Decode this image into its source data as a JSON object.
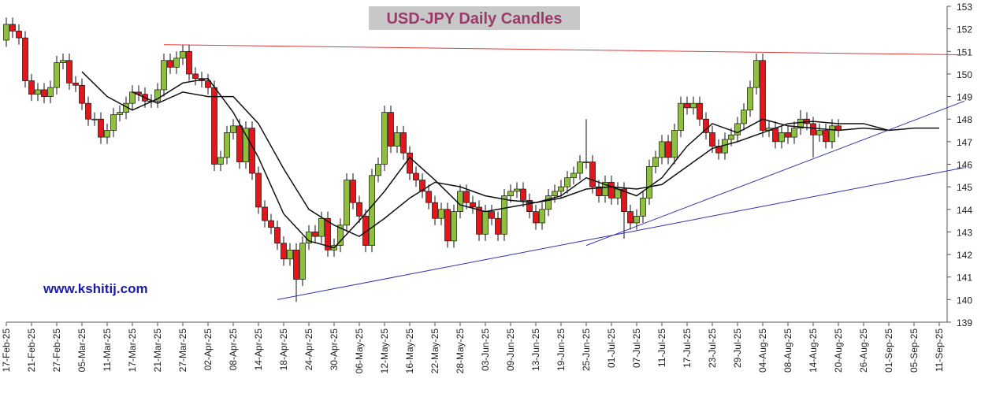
{
  "chart_data": {
    "type": "candlestick",
    "title": "USD-JPY Daily Candles",
    "watermark": "www.kshitij.com",
    "up_color": "#8fc03a",
    "down_color": "#e3161c",
    "ylim": [
      139,
      153
    ],
    "yticks": [
      139,
      140,
      141,
      142,
      143,
      144,
      145,
      146,
      147,
      148,
      149,
      150,
      151,
      152,
      153
    ],
    "xticks": [
      "17-Feb-25",
      "21-Feb-25",
      "27-Feb-25",
      "05-Mar-25",
      "11-Mar-25",
      "17-Mar-25",
      "21-Mar-25",
      "27-Mar-25",
      "02-Apr-25",
      "08-Apr-25",
      "14-Apr-25",
      "18-Apr-25",
      "24-Apr-25",
      "30-Apr-25",
      "06-May-25",
      "12-May-25",
      "16-May-25",
      "22-May-25",
      "28-May-25",
      "03-Jun-25",
      "09-Jun-25",
      "13-Jun-25",
      "19-Jun-25",
      "25-Jun-25",
      "01-Jul-25",
      "07-Jul-25",
      "11-Jul-25",
      "17-Jul-25",
      "23-Jul-25",
      "29-Jul-25",
      "04-Aug-25",
      "08-Aug-25",
      "14-Aug-25",
      "20-Aug-25",
      "26-Aug-25",
      "01-Sep-25",
      "05-Sep-25",
      "11-Sep-25"
    ],
    "open": [
      151.5,
      152.2,
      151.9,
      151.6,
      149.7,
      149.1,
      149.3,
      149.0,
      149.4,
      150.5,
      150.6,
      149.6,
      149.5,
      148.7,
      148.0,
      148.0,
      147.2,
      147.5,
      148.2,
      148.3,
      148.7,
      149.2,
      149.1,
      148.8,
      148.8,
      149.3,
      150.6,
      150.3,
      150.7,
      151.0,
      150.0,
      149.8,
      149.7,
      149.4,
      146.0,
      146.3,
      147.4,
      147.7,
      146.1,
      147.6,
      145.6,
      144.1,
      143.5,
      143.2,
      142.5,
      141.8,
      142.2,
      140.9,
      142.5,
      143.0,
      142.8,
      143.6,
      142.2,
      142.4,
      143.3,
      145.3,
      144.3,
      143.7,
      142.4,
      145.5,
      146.0,
      148.3,
      146.8,
      147.4,
      146.5,
      145.6,
      145.3,
      144.8,
      144.3,
      143.6,
      144.0,
      142.6,
      143.9,
      144.8,
      144.3,
      144.1,
      142.9,
      143.9,
      143.6,
      142.9,
      144.6,
      144.8,
      144.9,
      144.4,
      143.9,
      143.4,
      144.0,
      144.6,
      144.8,
      145.0,
      145.4,
      145.6,
      146.1,
      146.1,
      145.0,
      144.6,
      145.2,
      144.5,
      144.9,
      143.9,
      143.4,
      143.7,
      144.5,
      145.9,
      146.3,
      147.0,
      146.3,
      147.5,
      148.7,
      148.5,
      148.7,
      148.0,
      147.4,
      146.8,
      146.5,
      147.1,
      147.3,
      147.8,
      148.4,
      149.4,
      150.6,
      147.5,
      147.6,
      147.0,
      147.4,
      147.2,
      147.6,
      148.0,
      147.8,
      147.3,
      147.5,
      147.0,
      147.7
    ],
    "high": [
      152.5,
      152.5,
      152.2,
      151.9,
      150.0,
      149.6,
      149.6,
      149.7,
      150.8,
      150.9,
      150.9,
      149.9,
      149.8,
      149.0,
      148.3,
      148.3,
      147.8,
      148.5,
      148.6,
      149.0,
      149.5,
      149.5,
      149.4,
      149.1,
      149.6,
      150.9,
      150.9,
      151.0,
      151.3,
      151.3,
      150.3,
      150.1,
      150.0,
      149.7,
      146.6,
      147.7,
      148.0,
      148.0,
      147.9,
      147.9,
      145.9,
      144.4,
      143.8,
      143.5,
      142.8,
      142.5,
      142.5,
      142.8,
      143.3,
      143.3,
      143.9,
      143.9,
      142.7,
      143.6,
      145.6,
      145.6,
      144.6,
      144.0,
      145.8,
      146.3,
      148.6,
      148.6,
      147.7,
      147.7,
      146.8,
      145.9,
      145.6,
      145.1,
      144.6,
      144.3,
      144.3,
      144.2,
      145.1,
      145.1,
      144.6,
      144.4,
      144.2,
      144.2,
      143.9,
      144.9,
      145.1,
      145.2,
      145.2,
      144.7,
      144.2,
      144.3,
      144.9,
      145.1,
      145.3,
      145.7,
      145.9,
      146.4,
      148.0,
      146.4,
      145.3,
      145.5,
      145.5,
      145.2,
      145.2,
      144.2,
      144.0,
      144.8,
      146.2,
      146.6,
      147.3,
      147.3,
      147.8,
      149.0,
      149.0,
      149.0,
      149.0,
      148.3,
      147.7,
      147.1,
      147.4,
      147.6,
      148.1,
      148.7,
      149.7,
      150.9,
      150.9,
      147.9,
      147.9,
      147.7,
      147.7,
      147.9,
      148.4,
      148.3,
      148.1,
      147.8,
      147.8,
      148.0,
      148.0
    ],
    "low": [
      151.2,
      151.6,
      151.3,
      149.4,
      148.8,
      148.8,
      148.7,
      148.7,
      149.1,
      150.2,
      149.3,
      149.2,
      148.4,
      147.7,
      147.7,
      146.9,
      146.9,
      147.2,
      147.9,
      148.0,
      148.4,
      148.8,
      148.5,
      148.5,
      148.5,
      149.0,
      150.0,
      150.0,
      150.4,
      149.7,
      149.5,
      149.4,
      149.1,
      145.7,
      145.7,
      146.0,
      147.1,
      145.8,
      145.8,
      145.3,
      143.8,
      143.2,
      142.9,
      142.2,
      141.5,
      141.5,
      139.9,
      140.6,
      142.2,
      142.5,
      142.5,
      141.9,
      141.9,
      142.1,
      143.0,
      144.0,
      143.4,
      142.1,
      142.1,
      145.2,
      145.7,
      146.5,
      146.5,
      146.2,
      145.3,
      145.0,
      144.5,
      144.0,
      143.3,
      143.3,
      142.3,
      142.3,
      143.6,
      144.0,
      143.8,
      142.6,
      142.6,
      143.3,
      142.6,
      142.6,
      144.3,
      144.5,
      144.1,
      143.6,
      143.1,
      143.1,
      143.7,
      144.3,
      144.5,
      144.7,
      145.1,
      145.3,
      145.8,
      144.7,
      144.3,
      144.3,
      144.2,
      144.2,
      142.7,
      143.1,
      143.1,
      143.4,
      144.2,
      145.6,
      146.0,
      146.0,
      146.0,
      147.2,
      148.2,
      148.2,
      147.7,
      147.1,
      146.5,
      146.2,
      146.2,
      146.8,
      147.0,
      147.5,
      148.1,
      149.1,
      147.2,
      147.2,
      146.7,
      146.7,
      146.9,
      146.9,
      147.3,
      147.5,
      146.3,
      147.0,
      146.7,
      146.7,
      147.2
    ],
    "close": [
      152.2,
      151.9,
      151.6,
      149.7,
      149.1,
      149.3,
      149.0,
      149.4,
      150.5,
      150.6,
      149.6,
      149.5,
      148.7,
      148.0,
      148.0,
      147.2,
      147.5,
      148.2,
      148.3,
      148.7,
      149.2,
      149.1,
      148.8,
      148.8,
      149.3,
      150.6,
      150.3,
      150.7,
      151.0,
      150.0,
      149.8,
      149.7,
      149.4,
      146.0,
      146.3,
      147.4,
      147.7,
      146.1,
      147.6,
      145.6,
      144.1,
      143.5,
      143.2,
      142.5,
      141.8,
      142.2,
      140.9,
      142.5,
      143.0,
      142.8,
      143.6,
      142.2,
      142.4,
      143.3,
      145.3,
      144.3,
      143.7,
      142.4,
      145.5,
      146.0,
      148.3,
      146.8,
      147.4,
      146.5,
      145.6,
      145.3,
      144.8,
      144.3,
      143.6,
      144.0,
      142.6,
      143.9,
      144.8,
      144.3,
      144.1,
      142.9,
      143.9,
      143.6,
      142.9,
      144.6,
      144.8,
      144.9,
      144.4,
      143.9,
      143.4,
      144.0,
      144.6,
      144.8,
      145.0,
      145.4,
      145.6,
      146.1,
      146.1,
      145.0,
      144.6,
      145.2,
      144.5,
      144.9,
      143.9,
      143.4,
      143.7,
      144.5,
      145.9,
      146.3,
      147.0,
      146.3,
      147.5,
      148.7,
      148.5,
      148.7,
      148.0,
      147.4,
      146.8,
      146.5,
      147.1,
      147.3,
      147.8,
      148.4,
      149.4,
      150.6,
      147.5,
      147.6,
      147.0,
      147.4,
      147.2,
      147.6,
      148.0,
      147.8,
      147.3,
      147.5,
      147.0,
      147.7,
      147.5
    ],
    "averages": [
      {
        "color": "#111111",
        "x": [
          12,
          16,
          20,
          24,
          28,
          32,
          36,
          40,
          44,
          48,
          52,
          56,
          60,
          64,
          68,
          72,
          76,
          80,
          84,
          88,
          92,
          96,
          100,
          104,
          108,
          112,
          116,
          120,
          124,
          128,
          132,
          136,
          140,
          144,
          148
        ],
        "values": [
          150.1,
          149.0,
          148.4,
          148.9,
          149.6,
          149.8,
          148.3,
          146.3,
          143.8,
          142.6,
          142.3,
          143.5,
          144.8,
          146.3,
          145.3,
          144.2,
          143.9,
          144.1,
          144.3,
          144.6,
          145.4,
          145.0,
          144.6,
          145.4,
          146.8,
          147.8,
          147.4,
          148.0,
          147.7,
          147.6,
          147.5,
          147.6,
          147.5,
          147.6,
          147.6
        ]
      },
      {
        "color": "#111111",
        "x": [
          20,
          24,
          28,
          32,
          36,
          40,
          44,
          48,
          52,
          56,
          60,
          64,
          68,
          72,
          76,
          80,
          84,
          88,
          92,
          96,
          100,
          104,
          108,
          112,
          116,
          120,
          124,
          128,
          132,
          136,
          140
        ],
        "values": [
          149.2,
          148.7,
          149.2,
          149.0,
          149.0,
          147.8,
          145.8,
          144.0,
          143.3,
          142.8,
          143.6,
          144.5,
          145.2,
          145.0,
          144.6,
          144.4,
          144.3,
          144.5,
          144.9,
          145.0,
          144.9,
          145.1,
          145.9,
          146.7,
          147.0,
          147.4,
          147.8,
          147.9,
          147.8,
          147.8,
          147.5
        ]
      }
    ],
    "trend_lines": [
      {
        "color": "#e03a3a",
        "x": [
          25,
          152
        ],
        "values": [
          151.3,
          150.85
        ]
      },
      {
        "color": "#3030a8",
        "x": [
          43,
          152
        ],
        "values": [
          140.0,
          145.85
        ]
      },
      {
        "color": "#3030a8",
        "x": [
          92,
          152
        ],
        "values": [
          142.4,
          148.8
        ]
      }
    ]
  }
}
